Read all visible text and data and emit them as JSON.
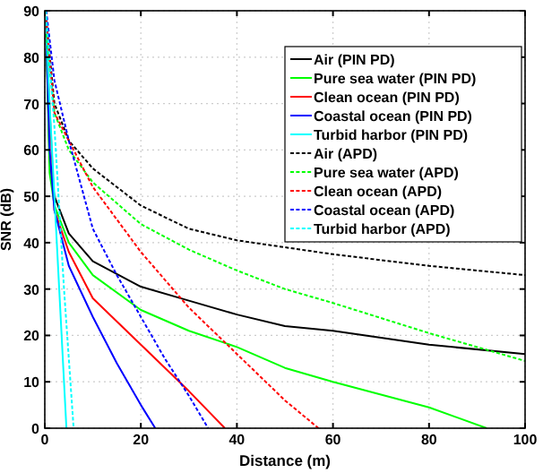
{
  "chart_data": {
    "type": "line",
    "xlabel": "Distance (m)",
    "ylabel": "SNR (dB)",
    "xlim": [
      0,
      100
    ],
    "ylim": [
      0,
      90
    ],
    "xticks": [
      0,
      20,
      40,
      60,
      80,
      100
    ],
    "yticks": [
      0,
      10,
      20,
      30,
      40,
      50,
      60,
      70,
      80,
      90
    ],
    "grid": true,
    "legend": "top right",
    "series": [
      {
        "name": "Air (PIN PD)",
        "color": "#000000",
        "line_style": "solid",
        "x": [
          0.3,
          1,
          2,
          5,
          10,
          20,
          30,
          40,
          50,
          60,
          80,
          100
        ],
        "values": [
          85,
          58,
          50,
          42,
          36,
          30.5,
          27.5,
          24.5,
          22,
          21,
          18,
          16
        ]
      },
      {
        "name": "Pure sea water (PIN PD)",
        "color": "#00ff00",
        "line_style": "solid",
        "x": [
          0.3,
          1,
          2,
          5,
          10,
          20,
          30,
          40,
          50,
          60,
          80,
          92
        ],
        "values": [
          85,
          55,
          48,
          40,
          33,
          25.5,
          21,
          17.5,
          13,
          10,
          4.5,
          0
        ]
      },
      {
        "name": "Clean ocean (PIN PD)",
        "color": "#ff0000",
        "line_style": "solid",
        "x": [
          0.3,
          2,
          5,
          10,
          20,
          30,
          37.5
        ],
        "values": [
          85,
          47,
          38,
          28,
          18,
          8,
          0
        ]
      },
      {
        "name": "Coastal ocean (PIN PD)",
        "color": "#0000ff",
        "line_style": "solid",
        "x": [
          0.3,
          1,
          2,
          5,
          10,
          15,
          20,
          23
        ],
        "values": [
          85,
          60,
          47,
          35,
          24,
          14,
          5,
          0
        ]
      },
      {
        "name": "Turbid harbor (PIN PD)",
        "color": "#00ffff",
        "line_style": "solid",
        "x": [
          0.2,
          1,
          2,
          3,
          4.5
        ],
        "values": [
          88,
          70,
          50,
          30,
          0
        ]
      },
      {
        "name": "Air (APD)",
        "color": "#000000",
        "line_style": "dashed",
        "x": [
          0.3,
          2,
          5,
          10,
          20,
          30,
          40,
          50,
          60,
          80,
          100
        ],
        "values": [
          88,
          70,
          62,
          56,
          48,
          43,
          40.5,
          39,
          37.5,
          35,
          33
        ]
      },
      {
        "name": "Pure sea water (APD)",
        "color": "#00ff00",
        "line_style": "dashed",
        "x": [
          0.3,
          2,
          5,
          10,
          20,
          30,
          40,
          50,
          60,
          80,
          100
        ],
        "values": [
          85,
          68,
          60,
          53,
          44,
          38.5,
          34,
          30,
          27,
          20.5,
          14.5
        ]
      },
      {
        "name": "Clean ocean (APD)",
        "color": "#ff0000",
        "line_style": "dashed",
        "x": [
          0.3,
          2,
          5,
          10,
          20,
          30,
          40,
          50,
          57
        ],
        "values": [
          88,
          68,
          62,
          52,
          38,
          26,
          16,
          6,
          0
        ]
      },
      {
        "name": "Coastal ocean (APD)",
        "color": "#0000ff",
        "line_style": "dashed",
        "x": [
          0.3,
          2,
          5,
          10,
          15,
          20,
          25,
          30,
          34
        ],
        "values": [
          90,
          75,
          62,
          43,
          33,
          24,
          15,
          7,
          0
        ]
      },
      {
        "name": "Turbid harbor (APD)",
        "color": "#00ffff",
        "line_style": "dashed",
        "x": [
          0.2,
          2,
          4,
          6
        ],
        "values": [
          90,
          65,
          30,
          0
        ]
      }
    ]
  }
}
